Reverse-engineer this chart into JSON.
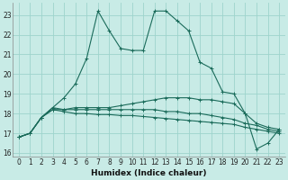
{
  "xlabel": "Humidex (Indice chaleur)",
  "xlim": [
    -0.5,
    23.5
  ],
  "ylim": [
    15.8,
    23.6
  ],
  "yticks": [
    16,
    17,
    18,
    19,
    20,
    21,
    22,
    23
  ],
  "xticks": [
    0,
    1,
    2,
    3,
    4,
    5,
    6,
    7,
    8,
    9,
    10,
    11,
    12,
    13,
    14,
    15,
    16,
    17,
    18,
    19,
    20,
    21,
    22,
    23
  ],
  "bg_color": "#c8ebe6",
  "grid_color": "#9dd4cc",
  "line_color": "#1a6b5a",
  "lines": [
    {
      "x": [
        0,
        1,
        2,
        3,
        4,
        5,
        6,
        7,
        8,
        9,
        10,
        11,
        12,
        13,
        14,
        15,
        16,
        17,
        18,
        19,
        20,
        21,
        22,
        23
      ],
      "y": [
        16.8,
        17.0,
        17.8,
        18.3,
        18.8,
        19.5,
        20.8,
        23.2,
        22.2,
        21.3,
        21.2,
        21.2,
        23.2,
        23.2,
        22.7,
        22.2,
        20.6,
        20.3,
        19.1,
        19.0,
        18.0,
        16.2,
        16.5,
        17.2
      ]
    },
    {
      "x": [
        0,
        1,
        2,
        3,
        4,
        5,
        6,
        7,
        8,
        9,
        10,
        11,
        12,
        13,
        14,
        15,
        16,
        17,
        18,
        19,
        20,
        21,
        22,
        23
      ],
      "y": [
        16.8,
        17.0,
        17.8,
        18.2,
        18.2,
        18.3,
        18.3,
        18.3,
        18.3,
        18.4,
        18.5,
        18.6,
        18.7,
        18.8,
        18.8,
        18.8,
        18.7,
        18.7,
        18.6,
        18.5,
        18.0,
        17.5,
        17.3,
        17.2
      ]
    },
    {
      "x": [
        0,
        1,
        2,
        3,
        4,
        5,
        6,
        7,
        8,
        9,
        10,
        11,
        12,
        13,
        14,
        15,
        16,
        17,
        18,
        19,
        20,
        21,
        22,
        23
      ],
      "y": [
        16.8,
        17.0,
        17.8,
        18.3,
        18.2,
        18.2,
        18.2,
        18.2,
        18.2,
        18.2,
        18.2,
        18.2,
        18.2,
        18.1,
        18.1,
        18.0,
        18.0,
        17.9,
        17.8,
        17.7,
        17.5,
        17.4,
        17.2,
        17.1
      ]
    },
    {
      "x": [
        0,
        1,
        2,
        3,
        4,
        5,
        6,
        7,
        8,
        9,
        10,
        11,
        12,
        13,
        14,
        15,
        16,
        17,
        18,
        19,
        20,
        21,
        22,
        23
      ],
      "y": [
        16.8,
        17.0,
        17.8,
        18.2,
        18.1,
        18.0,
        18.0,
        17.95,
        17.95,
        17.9,
        17.9,
        17.85,
        17.8,
        17.75,
        17.7,
        17.65,
        17.6,
        17.55,
        17.5,
        17.45,
        17.3,
        17.2,
        17.1,
        17.0
      ]
    }
  ]
}
